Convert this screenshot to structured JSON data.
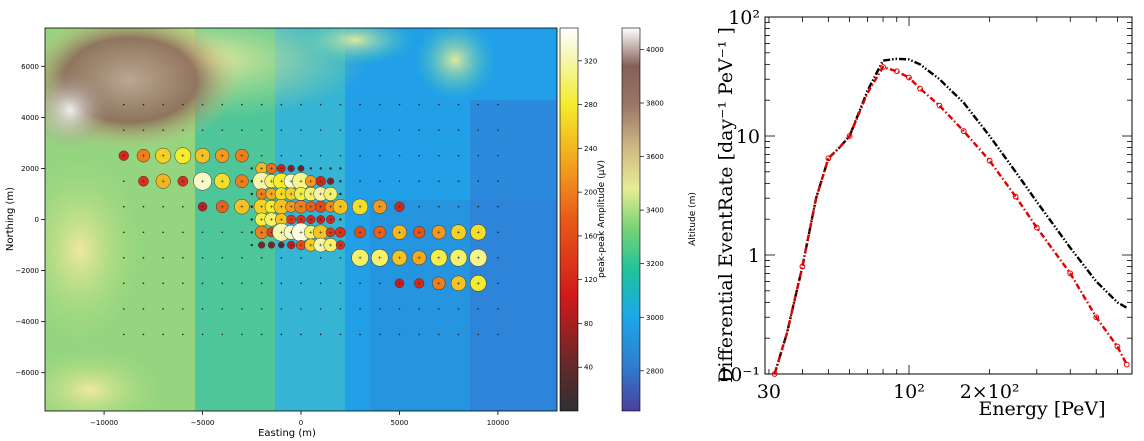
{
  "chart_data": [
    {
      "type": "scatter",
      "background": "altitude heatmap (terrain colormap)",
      "xlabel": "Easting (m)",
      "ylabel": "Northing (m)",
      "xlim": [
        -13000,
        13000
      ],
      "ylim": [
        -7500,
        7500
      ],
      "xticks": [
        -10000,
        -5000,
        0,
        5000,
        10000
      ],
      "yticks": [
        -6000,
        -4000,
        -2000,
        0,
        2000,
        4000,
        6000
      ],
      "xtick_labels": [
        "−10000",
        "−5000",
        "0",
        "5000",
        "10000"
      ],
      "ytick_labels": [
        "−6000",
        "−4000",
        "−2000",
        "0",
        "2000",
        "4000",
        "6000"
      ],
      "colorbars": [
        {
          "label": "peak-peak Amplitude (μV)",
          "range": [
            0,
            350
          ],
          "ticks": [
            40,
            80,
            120,
            160,
            200,
            240,
            280,
            320
          ],
          "colormap": "hot-like (dark → red → yellow → white)"
        },
        {
          "label": "Altitude (m)",
          "range": [
            2650,
            4080
          ],
          "ticks": [
            2800,
            3000,
            3200,
            3400,
            3600,
            3800,
            4000
          ],
          "colormap": "terrain (blue → green → yellow → brown → white)"
        }
      ],
      "grid_spacing_m": 1000,
      "dense_region": {
        "x": [
          -2500,
          2000
        ],
        "y": [
          -1000,
          2000
        ],
        "spacing_m": 500
      },
      "points": [
        {
          "x": -9000,
          "y": 2500,
          "amp": 120
        },
        {
          "x": -8000,
          "y": 2500,
          "amp": 200
        },
        {
          "x": -7000,
          "y": 2500,
          "amp": 260
        },
        {
          "x": -6000,
          "y": 2500,
          "amp": 280
        },
        {
          "x": -5000,
          "y": 2500,
          "amp": 250
        },
        {
          "x": -4000,
          "y": 2500,
          "amp": 220
        },
        {
          "x": -3000,
          "y": 2500,
          "amp": 200
        },
        {
          "x": -8000,
          "y": 1500,
          "amp": 130
        },
        {
          "x": -7000,
          "y": 1500,
          "amp": 240
        },
        {
          "x": -6000,
          "y": 1500,
          "amp": 130
        },
        {
          "x": -5000,
          "y": 1500,
          "amp": 330
        },
        {
          "x": -4000,
          "y": 1500,
          "amp": 270
        },
        {
          "x": -3000,
          "y": 1500,
          "amp": 200
        },
        {
          "x": -5000,
          "y": 500,
          "amp": 100
        },
        {
          "x": -4000,
          "y": 500,
          "amp": 180
        },
        {
          "x": -3000,
          "y": 500,
          "amp": 250
        },
        {
          "x": 3000,
          "y": 500,
          "amp": 270
        },
        {
          "x": 4000,
          "y": 500,
          "amp": 220
        },
        {
          "x": 5000,
          "y": 500,
          "amp": 120
        },
        {
          "x": 3000,
          "y": -500,
          "amp": 160
        },
        {
          "x": 4000,
          "y": -500,
          "amp": 180
        },
        {
          "x": 5000,
          "y": -500,
          "amp": 240
        },
        {
          "x": 6000,
          "y": -500,
          "amp": 170
        },
        {
          "x": 7000,
          "y": -500,
          "amp": 220
        },
        {
          "x": 8000,
          "y": -500,
          "amp": 260
        },
        {
          "x": 9000,
          "y": -500,
          "amp": 270
        },
        {
          "x": 3000,
          "y": -1500,
          "amp": 300
        },
        {
          "x": 4000,
          "y": -1500,
          "amp": 300
        },
        {
          "x": 5000,
          "y": -1500,
          "amp": 250
        },
        {
          "x": 6000,
          "y": -1500,
          "amp": 230
        },
        {
          "x": 7000,
          "y": -1500,
          "amp": 290
        },
        {
          "x": 8000,
          "y": -1500,
          "amp": 300
        },
        {
          "x": 9000,
          "y": -1500,
          "amp": 310
        },
        {
          "x": 5000,
          "y": -2500,
          "amp": 100
        },
        {
          "x": 6000,
          "y": -2500,
          "amp": 120
        },
        {
          "x": 7000,
          "y": -2500,
          "amp": 200
        },
        {
          "x": 8000,
          "y": -2500,
          "amp": 250
        },
        {
          "x": 9000,
          "y": -2500,
          "amp": 280
        },
        {
          "x": -2000,
          "y": 2000,
          "amp": 240
        },
        {
          "x": -1500,
          "y": 2000,
          "amp": 190
        },
        {
          "x": -1000,
          "y": 2000,
          "amp": 110
        },
        {
          "x": -500,
          "y": 2000,
          "amp": 60
        },
        {
          "x": 0,
          "y": 2000,
          "amp": 40
        },
        {
          "x": -2000,
          "y": 1500,
          "amp": 320
        },
        {
          "x": -1500,
          "y": 1500,
          "amp": 300
        },
        {
          "x": -1000,
          "y": 1500,
          "amp": 280
        },
        {
          "x": -500,
          "y": 1500,
          "amp": 330
        },
        {
          "x": 0,
          "y": 1500,
          "amp": 310
        },
        {
          "x": 500,
          "y": 1500,
          "amp": 220
        },
        {
          "x": 1000,
          "y": 1500,
          "amp": 120
        },
        {
          "x": 1500,
          "y": 1500,
          "amp": 60
        },
        {
          "x": -2000,
          "y": 1000,
          "amp": 200
        },
        {
          "x": -1500,
          "y": 1000,
          "amp": 230
        },
        {
          "x": -1000,
          "y": 1000,
          "amp": 270
        },
        {
          "x": -500,
          "y": 1000,
          "amp": 260
        },
        {
          "x": 0,
          "y": 1000,
          "amp": 290
        },
        {
          "x": 500,
          "y": 1000,
          "amp": 300
        },
        {
          "x": 1000,
          "y": 1000,
          "amp": 320
        },
        {
          "x": 1500,
          "y": 1000,
          "amp": 300
        },
        {
          "x": -2000,
          "y": 500,
          "amp": 260
        },
        {
          "x": -1500,
          "y": 500,
          "amp": 280
        },
        {
          "x": -1000,
          "y": 500,
          "amp": 250
        },
        {
          "x": -500,
          "y": 500,
          "amp": 220
        },
        {
          "x": 0,
          "y": 500,
          "amp": 200
        },
        {
          "x": 500,
          "y": 500,
          "amp": 180
        },
        {
          "x": 1000,
          "y": 500,
          "amp": 160
        },
        {
          "x": 1500,
          "y": 500,
          "amp": 210
        },
        {
          "x": 2000,
          "y": 500,
          "amp": 250
        },
        {
          "x": -2000,
          "y": 0,
          "amp": 290
        },
        {
          "x": -1500,
          "y": 0,
          "amp": 300
        },
        {
          "x": -1000,
          "y": 0,
          "amp": 250
        },
        {
          "x": -500,
          "y": 0,
          "amp": 140
        },
        {
          "x": 0,
          "y": 0,
          "amp": 130
        },
        {
          "x": 500,
          "y": 0,
          "amp": 120
        },
        {
          "x": 1000,
          "y": 0,
          "amp": 110
        },
        {
          "x": 1500,
          "y": 0,
          "amp": 120
        },
        {
          "x": -2000,
          "y": -500,
          "amp": 200
        },
        {
          "x": -1500,
          "y": -500,
          "amp": 150
        },
        {
          "x": -1000,
          "y": -500,
          "amp": 320
        },
        {
          "x": -500,
          "y": -500,
          "amp": 330
        },
        {
          "x": 0,
          "y": -500,
          "amp": 340
        },
        {
          "x": 500,
          "y": -500,
          "amp": 300
        },
        {
          "x": 1000,
          "y": -500,
          "amp": 250
        },
        {
          "x": 1500,
          "y": -500,
          "amp": 140
        },
        {
          "x": 2000,
          "y": -500,
          "amp": 130
        },
        {
          "x": -2000,
          "y": -1000,
          "amp": 60
        },
        {
          "x": -1500,
          "y": -1000,
          "amp": 60
        },
        {
          "x": -1000,
          "y": -1000,
          "amp": 40
        },
        {
          "x": -500,
          "y": -1000,
          "amp": 100
        },
        {
          "x": 0,
          "y": -1000,
          "amp": 160
        },
        {
          "x": 500,
          "y": -1000,
          "amp": 260
        },
        {
          "x": 1000,
          "y": -1000,
          "amp": 320
        },
        {
          "x": 1500,
          "y": -1000,
          "amp": 300
        },
        {
          "x": 2000,
          "y": -1000,
          "amp": 130
        }
      ]
    },
    {
      "type": "line",
      "xscale": "log",
      "yscale": "log",
      "xlabel": "Energy [PeV]",
      "ylabel": "Differential EventRate [day⁻¹ PeV⁻¹ ]",
      "xlim": [
        29,
        680
      ],
      "ylim": [
        0.1,
        100
      ],
      "xtick_labels": [
        "30",
        "10²",
        "2×10²"
      ],
      "xtick_values": [
        30,
        100,
        200
      ],
      "ytick_labels": [
        "10⁻¹",
        "1",
        "10",
        "10²"
      ],
      "ytick_values": [
        0.1,
        1,
        10,
        100
      ],
      "series": [
        {
          "color": "#000000",
          "style": "dash-dot-dot",
          "x": [
            31.5,
            35,
            40,
            45,
            50,
            55,
            60,
            70,
            80,
            90,
            100,
            110,
            130,
            160,
            200,
            250,
            300,
            400,
            500,
            600,
            650
          ],
          "y": [
            0.1,
            0.22,
            0.8,
            3.0,
            6.5,
            8.0,
            10.0,
            24.0,
            43.0,
            44.5,
            44.0,
            40.0,
            30.0,
            19.0,
            10.0,
            5.0,
            2.8,
            1.15,
            0.6,
            0.4,
            0.36
          ]
        },
        {
          "color": "#e00000",
          "style": "dash-dot with circle markers",
          "x": [
            31.5,
            35,
            40,
            45,
            50,
            55,
            60,
            70,
            80,
            90,
            100,
            110,
            130,
            160,
            200,
            250,
            300,
            400,
            500,
            600,
            650
          ],
          "y": [
            0.1,
            0.22,
            0.8,
            3.0,
            6.5,
            8.0,
            10.0,
            23.0,
            38.0,
            35.0,
            31.0,
            25.0,
            18.0,
            11.0,
            6.2,
            3.1,
            1.7,
            0.7,
            0.3,
            0.17,
            0.12
          ]
        }
      ]
    }
  ]
}
